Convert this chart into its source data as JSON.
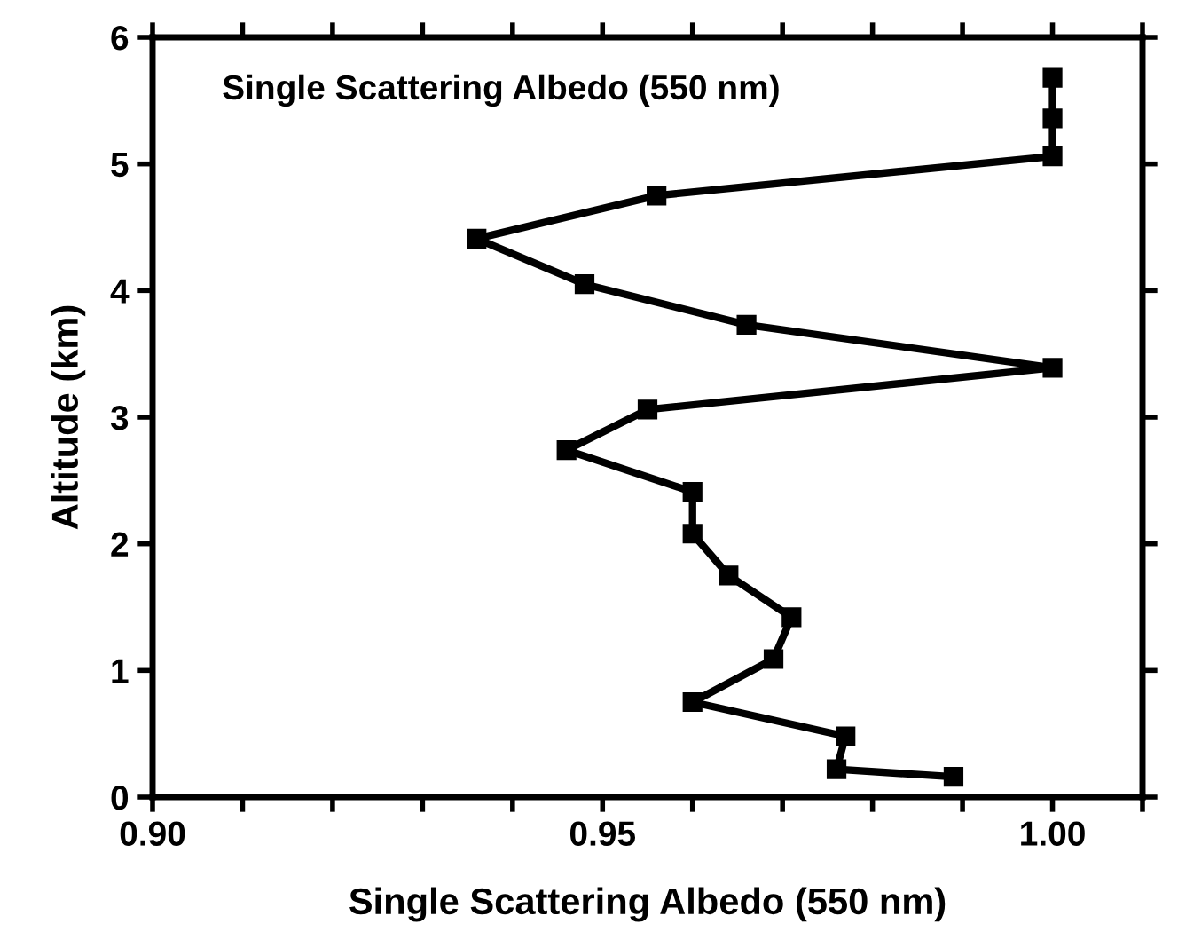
{
  "chart_data": {
    "type": "line",
    "xlabel": "Single Scattering Albedo (550 nm)",
    "ylabel": "Altitude (km)",
    "annotations": [
      "Single Scattering Albedo (550 nm)"
    ],
    "marker": "square",
    "line_style": "solid",
    "grid": false,
    "legend": false,
    "x": [
      1.0,
      1.0,
      1.0,
      0.956,
      0.936,
      0.948,
      0.966,
      1.0,
      0.955,
      0.946,
      0.96,
      0.96,
      0.964,
      0.971,
      0.969,
      0.96,
      0.977,
      0.976,
      0.989
    ],
    "series": [
      {
        "color": "#000000",
        "values": [
          5.68,
          5.36,
          5.06,
          4.75,
          4.41,
          4.05,
          3.73,
          3.39,
          3.06,
          2.74,
          2.41,
          2.08,
          1.75,
          1.42,
          1.09,
          0.75,
          0.48,
          0.22,
          0.16
        ]
      }
    ],
    "xlim": [
      0.9,
      1.01
    ],
    "ylim": [
      0,
      6
    ],
    "xticks": [
      {
        "value": 0.9,
        "label": "0.90"
      },
      {
        "value": 0.91,
        "label": null
      },
      {
        "value": 0.92,
        "label": null
      },
      {
        "value": 0.93,
        "label": null
      },
      {
        "value": 0.94,
        "label": null
      },
      {
        "value": 0.95,
        "label": "0.95"
      },
      {
        "value": 0.96,
        "label": null
      },
      {
        "value": 0.97,
        "label": null
      },
      {
        "value": 0.98,
        "label": null
      },
      {
        "value": 0.99,
        "label": null
      },
      {
        "value": 1.0,
        "label": "1.00"
      },
      {
        "value": 1.01,
        "label": null
      }
    ],
    "yticks": [
      0,
      1,
      2,
      3,
      4,
      5,
      6
    ]
  }
}
